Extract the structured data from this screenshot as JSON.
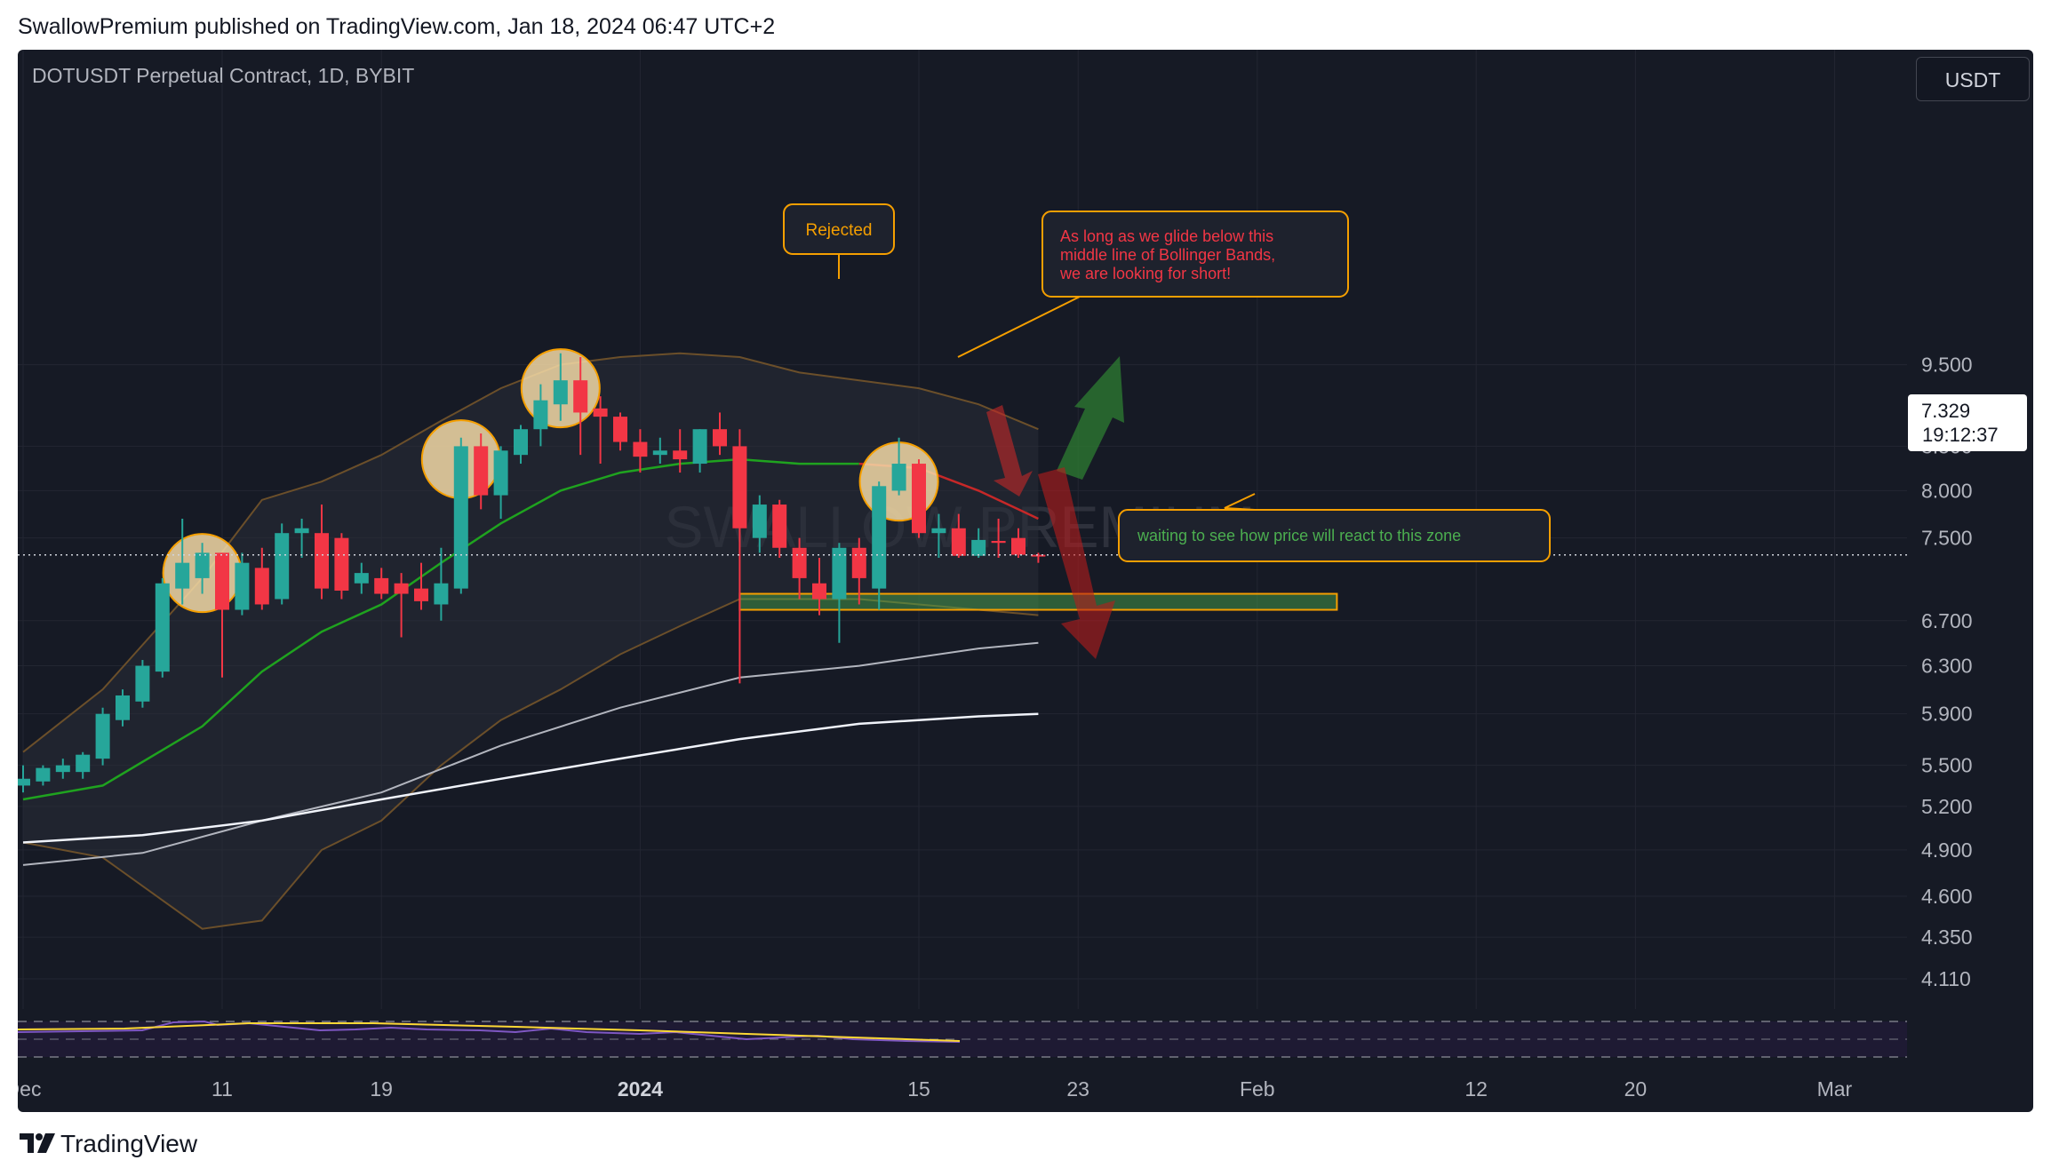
{
  "header": {
    "publish_line": "SwallowPremium published on TradingView.com, Jan 18, 2024 06:47 UTC+2"
  },
  "chart_header": {
    "symbol_line": "DOTUSDT Perpetual Contract, 1D, BYBIT",
    "currency": "USDT"
  },
  "footer": {
    "brand": "TradingView"
  },
  "watermark": "SWALLOW PREMIUM",
  "annotations": {
    "rejected": "Rejected",
    "short_note": [
      "As long as we glide below this",
      "middle line of Bollinger Bands,",
      "we are looking for short!"
    ],
    "zone_note": "waiting to see how price will react to this zone"
  },
  "colors": {
    "background": "#161a25",
    "up": "#26a69a",
    "down": "#f23645",
    "accent": "#f59f00",
    "basis": "#1fa31f"
  },
  "chart_data": {
    "type": "candlestick",
    "title": "DOTUSDT Perpetual Contract, 1D, BYBIT",
    "ylim": [
      3.9,
      10.4
    ],
    "y_scale": "log",
    "y_ticks": [
      9.5,
      8.5,
      8.0,
      7.5,
      6.7,
      6.3,
      5.9,
      5.5,
      5.2,
      4.9,
      4.6,
      4.35,
      4.11
    ],
    "y_tick_labels": [
      "9.500",
      "8.500",
      "8.000",
      "7.500",
      "6.700",
      "6.300",
      "5.900",
      "5.500",
      "5.200",
      "4.900",
      "4.600",
      "4.350",
      "4.110"
    ],
    "x_ticks": [
      {
        "day": 0,
        "label": "Dec"
      },
      {
        "day": 10,
        "label": "11"
      },
      {
        "day": 18,
        "label": "19"
      },
      {
        "day": 31,
        "label": "2024"
      },
      {
        "day": 45,
        "label": "15"
      },
      {
        "day": 53,
        "label": "23"
      },
      {
        "day": 62,
        "label": "Feb"
      },
      {
        "day": 73,
        "label": "12"
      },
      {
        "day": 81,
        "label": "20"
      },
      {
        "day": 91,
        "label": "Mar"
      }
    ],
    "last_price": "7.329",
    "countdown": "19:12:37",
    "candles": [
      {
        "day": 0,
        "o": 5.35,
        "h": 5.5,
        "l": 5.3,
        "c": 5.4
      },
      {
        "day": 1,
        "o": 5.38,
        "h": 5.5,
        "l": 5.35,
        "c": 5.48
      },
      {
        "day": 2,
        "o": 5.45,
        "h": 5.55,
        "l": 5.4,
        "c": 5.5
      },
      {
        "day": 3,
        "o": 5.45,
        "h": 5.6,
        "l": 5.4,
        "c": 5.58
      },
      {
        "day": 4,
        "o": 5.55,
        "h": 5.95,
        "l": 5.5,
        "c": 5.9
      },
      {
        "day": 5,
        "o": 5.85,
        "h": 6.1,
        "l": 5.8,
        "c": 6.05
      },
      {
        "day": 6,
        "o": 6.0,
        "h": 6.35,
        "l": 5.95,
        "c": 6.3
      },
      {
        "day": 7,
        "o": 6.25,
        "h": 7.1,
        "l": 6.2,
        "c": 7.05
      },
      {
        "day": 8,
        "o": 7.0,
        "h": 7.7,
        "l": 6.85,
        "c": 7.25
      },
      {
        "day": 9,
        "o": 7.1,
        "h": 7.45,
        "l": 6.95,
        "c": 7.35
      },
      {
        "day": 10,
        "o": 7.35,
        "h": 7.35,
        "l": 6.2,
        "c": 6.8
      },
      {
        "day": 11,
        "o": 6.8,
        "h": 7.35,
        "l": 6.75,
        "c": 7.25
      },
      {
        "day": 12,
        "o": 7.2,
        "h": 7.4,
        "l": 6.8,
        "c": 6.85
      },
      {
        "day": 13,
        "o": 6.9,
        "h": 7.65,
        "l": 6.85,
        "c": 7.55
      },
      {
        "day": 14,
        "o": 7.55,
        "h": 7.7,
        "l": 7.3,
        "c": 7.6
      },
      {
        "day": 15,
        "o": 7.55,
        "h": 7.85,
        "l": 6.9,
        "c": 7.0
      },
      {
        "day": 16,
        "o": 7.5,
        "h": 7.55,
        "l": 6.9,
        "c": 6.98
      },
      {
        "day": 17,
        "o": 7.05,
        "h": 7.25,
        "l": 6.95,
        "c": 7.15
      },
      {
        "day": 18,
        "o": 7.1,
        "h": 7.2,
        "l": 6.9,
        "c": 6.95
      },
      {
        "day": 19,
        "o": 7.05,
        "h": 7.15,
        "l": 6.55,
        "c": 6.95
      },
      {
        "day": 20,
        "o": 7.0,
        "h": 7.25,
        "l": 6.8,
        "c": 6.88
      },
      {
        "day": 21,
        "o": 6.85,
        "h": 7.4,
        "l": 6.7,
        "c": 7.05
      },
      {
        "day": 22,
        "o": 7.0,
        "h": 8.6,
        "l": 6.95,
        "c": 8.5
      },
      {
        "day": 23,
        "o": 8.5,
        "h": 8.65,
        "l": 7.8,
        "c": 7.95
      },
      {
        "day": 24,
        "o": 7.95,
        "h": 8.5,
        "l": 7.7,
        "c": 8.45
      },
      {
        "day": 25,
        "o": 8.4,
        "h": 8.75,
        "l": 8.3,
        "c": 8.7
      },
      {
        "day": 26,
        "o": 8.7,
        "h": 9.25,
        "l": 8.5,
        "c": 9.05
      },
      {
        "day": 27,
        "o": 9.0,
        "h": 9.65,
        "l": 8.8,
        "c": 9.3
      },
      {
        "day": 28,
        "o": 9.3,
        "h": 9.6,
        "l": 8.4,
        "c": 8.9
      },
      {
        "day": 29,
        "o": 8.95,
        "h": 9.1,
        "l": 8.3,
        "c": 8.85
      },
      {
        "day": 30,
        "o": 8.85,
        "h": 8.9,
        "l": 8.45,
        "c": 8.55
      },
      {
        "day": 31,
        "o": 8.55,
        "h": 8.7,
        "l": 8.2,
        "c": 8.38
      },
      {
        "day": 32,
        "o": 8.4,
        "h": 8.6,
        "l": 8.3,
        "c": 8.45
      },
      {
        "day": 33,
        "o": 8.45,
        "h": 8.7,
        "l": 8.2,
        "c": 8.35
      },
      {
        "day": 34,
        "o": 8.3,
        "h": 8.7,
        "l": 8.2,
        "c": 8.7
      },
      {
        "day": 35,
        "o": 8.7,
        "h": 8.9,
        "l": 8.4,
        "c": 8.5
      },
      {
        "day": 36,
        "o": 8.5,
        "h": 8.7,
        "l": 6.15,
        "c": 7.6
      },
      {
        "day": 37,
        "o": 7.5,
        "h": 7.95,
        "l": 7.35,
        "c": 7.85
      },
      {
        "day": 38,
        "o": 7.85,
        "h": 7.9,
        "l": 7.3,
        "c": 7.4
      },
      {
        "day": 39,
        "o": 7.4,
        "h": 7.5,
        "l": 6.9,
        "c": 7.1
      },
      {
        "day": 40,
        "o": 7.05,
        "h": 7.3,
        "l": 6.75,
        "c": 6.9
      },
      {
        "day": 41,
        "o": 6.9,
        "h": 7.45,
        "l": 6.5,
        "c": 7.4
      },
      {
        "day": 42,
        "o": 7.4,
        "h": 7.5,
        "l": 6.85,
        "c": 7.1
      },
      {
        "day": 43,
        "o": 7.0,
        "h": 8.1,
        "l": 6.8,
        "c": 8.05
      },
      {
        "day": 44,
        "o": 8.0,
        "h": 8.6,
        "l": 7.95,
        "c": 8.3
      },
      {
        "day": 45,
        "o": 8.3,
        "h": 8.35,
        "l": 7.5,
        "c": 7.55
      },
      {
        "day": 46,
        "o": 7.55,
        "h": 7.75,
        "l": 7.3,
        "c": 7.6
      },
      {
        "day": 47,
        "o": 7.6,
        "h": 7.75,
        "l": 7.3,
        "c": 7.32
      },
      {
        "day": 48,
        "o": 7.32,
        "h": 7.6,
        "l": 7.3,
        "c": 7.48
      },
      {
        "day": 49,
        "o": 7.47,
        "h": 7.7,
        "l": 7.3,
        "c": 7.45
      },
      {
        "day": 50,
        "o": 7.5,
        "h": 7.6,
        "l": 7.3,
        "c": 7.33
      },
      {
        "day": 51,
        "o": 7.33,
        "h": 7.35,
        "l": 7.25,
        "c": 7.329
      }
    ],
    "bollinger": {
      "days": [
        0,
        4,
        9,
        12,
        15,
        18,
        21,
        24,
        27,
        30,
        33,
        36,
        39,
        42,
        45,
        48,
        51
      ],
      "upper": [
        5.6,
        6.1,
        7.1,
        7.9,
        8.1,
        8.4,
        8.8,
        9.2,
        9.5,
        9.6,
        9.65,
        9.6,
        9.4,
        9.3,
        9.2,
        9.0,
        8.7
      ],
      "basis": [
        5.25,
        5.35,
        5.8,
        6.25,
        6.6,
        6.85,
        7.25,
        7.65,
        8.0,
        8.2,
        8.3,
        8.35,
        8.3,
        8.3,
        8.25,
        8.0,
        7.7
      ],
      "lower": [
        4.95,
        4.85,
        4.4,
        4.45,
        4.9,
        5.1,
        5.5,
        5.85,
        6.1,
        6.4,
        6.65,
        6.9,
        6.9,
        6.9,
        6.85,
        6.8,
        6.75
      ]
    },
    "ma_fast": {
      "days": [
        0,
        6,
        12,
        18,
        24,
        30,
        36,
        42,
        48,
        51
      ],
      "values": [
        4.8,
        4.88,
        5.1,
        5.3,
        5.65,
        5.95,
        6.2,
        6.3,
        6.45,
        6.5
      ]
    },
    "ma_slow": {
      "days": [
        0,
        6,
        12,
        18,
        24,
        30,
        36,
        42,
        48,
        51
      ],
      "values": [
        4.95,
        5.0,
        5.1,
        5.25,
        5.4,
        5.55,
        5.7,
        5.82,
        5.88,
        5.9
      ]
    },
    "zone": {
      "from_day": 36,
      "to_day": 66,
      "low": 6.8,
      "high": 6.95
    }
  }
}
